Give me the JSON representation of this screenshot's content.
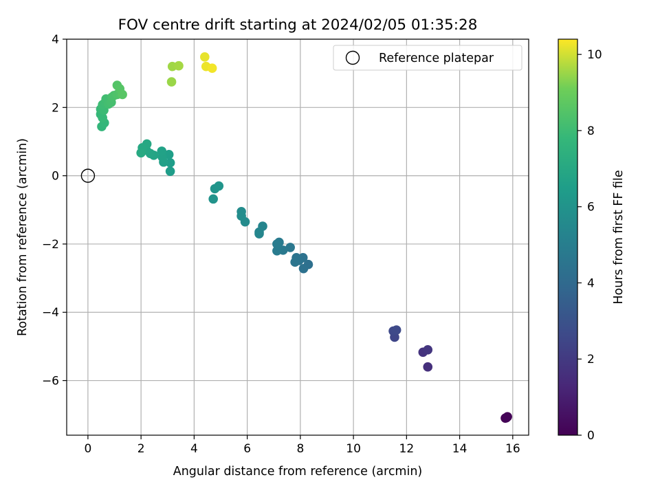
{
  "chart_data": {
    "type": "scatter",
    "title": "FOV centre drift starting at 2024/02/05 01:35:28",
    "xlabel": "Angular distance from reference (arcmin)",
    "ylabel": "Rotation from reference (arcmin)",
    "xlim": [
      -0.8,
      16.6
    ],
    "ylim": [
      -7.6,
      4.0
    ],
    "xticks": [
      0,
      2,
      4,
      6,
      8,
      10,
      12,
      14,
      16
    ],
    "yticks": [
      -6,
      -4,
      -2,
      0,
      2,
      4
    ],
    "grid": true,
    "legend": {
      "placement": "top-right",
      "entries": [
        "Reference platepar"
      ]
    },
    "reference_point": {
      "x": 0,
      "y": 0,
      "label": "Reference platepar"
    },
    "colorbar": {
      "label": "Hours from first FF file",
      "colormap": "viridis",
      "range": [
        0,
        10.4
      ],
      "ticks": [
        0,
        2,
        4,
        6,
        8,
        10
      ]
    },
    "points": [
      {
        "x": 15.72,
        "y": -7.1,
        "t": 0.0
      },
      {
        "x": 15.8,
        "y": -7.06,
        "t": 0.05
      },
      {
        "x": 15.76,
        "y": -7.09,
        "t": 0.1
      },
      {
        "x": 12.8,
        "y": -5.6,
        "t": 1.6
      },
      {
        "x": 12.62,
        "y": -5.17,
        "t": 1.75
      },
      {
        "x": 12.8,
        "y": -5.1,
        "t": 1.85
      },
      {
        "x": 11.55,
        "y": -4.73,
        "t": 2.5
      },
      {
        "x": 11.5,
        "y": -4.55,
        "t": 2.6
      },
      {
        "x": 11.62,
        "y": -4.52,
        "t": 2.65
      },
      {
        "x": 8.3,
        "y": -2.6,
        "t": 4.3
      },
      {
        "x": 8.12,
        "y": -2.72,
        "t": 4.35
      },
      {
        "x": 8.1,
        "y": -2.4,
        "t": 4.4
      },
      {
        "x": 7.95,
        "y": -2.48,
        "t": 4.45
      },
      {
        "x": 7.85,
        "y": -2.4,
        "t": 4.5
      },
      {
        "x": 7.8,
        "y": -2.53,
        "t": 4.55
      },
      {
        "x": 7.62,
        "y": -2.1,
        "t": 4.65
      },
      {
        "x": 7.35,
        "y": -2.18,
        "t": 4.75
      },
      {
        "x": 7.2,
        "y": -1.95,
        "t": 4.8
      },
      {
        "x": 7.12,
        "y": -2.2,
        "t": 4.85
      },
      {
        "x": 7.12,
        "y": -2.0,
        "t": 4.9
      },
      {
        "x": 6.45,
        "y": -1.65,
        "t": 5.3
      },
      {
        "x": 6.58,
        "y": -1.48,
        "t": 5.35
      },
      {
        "x": 6.45,
        "y": -1.7,
        "t": 5.4
      },
      {
        "x": 5.92,
        "y": -1.35,
        "t": 5.6
      },
      {
        "x": 5.78,
        "y": -1.05,
        "t": 5.65
      },
      {
        "x": 5.78,
        "y": -1.18,
        "t": 5.7
      },
      {
        "x": 4.72,
        "y": -0.68,
        "t": 6.0
      },
      {
        "x": 4.78,
        "y": -0.38,
        "t": 6.05
      },
      {
        "x": 4.93,
        "y": -0.3,
        "t": 6.1
      },
      {
        "x": 3.1,
        "y": 0.13,
        "t": 6.45
      },
      {
        "x": 3.1,
        "y": 0.38,
        "t": 6.5
      },
      {
        "x": 3.05,
        "y": 0.62,
        "t": 6.55
      },
      {
        "x": 2.85,
        "y": 0.4,
        "t": 6.6
      },
      {
        "x": 2.8,
        "y": 0.55,
        "t": 6.65
      },
      {
        "x": 2.78,
        "y": 0.72,
        "t": 6.7
      },
      {
        "x": 2.48,
        "y": 0.6,
        "t": 6.8
      },
      {
        "x": 2.35,
        "y": 0.65,
        "t": 6.85
      },
      {
        "x": 2.2,
        "y": 0.75,
        "t": 6.9
      },
      {
        "x": 2.22,
        "y": 0.93,
        "t": 6.95
      },
      {
        "x": 2.05,
        "y": 0.82,
        "t": 7.0
      },
      {
        "x": 2.0,
        "y": 0.67,
        "t": 7.05
      },
      {
        "x": 0.52,
        "y": 1.44,
        "t": 7.7
      },
      {
        "x": 0.62,
        "y": 1.55,
        "t": 7.75
      },
      {
        "x": 0.48,
        "y": 1.8,
        "t": 7.8
      },
      {
        "x": 0.55,
        "y": 1.7,
        "t": 7.85
      },
      {
        "x": 0.48,
        "y": 1.95,
        "t": 7.9
      },
      {
        "x": 0.6,
        "y": 1.92,
        "t": 7.95
      },
      {
        "x": 0.55,
        "y": 2.08,
        "t": 8.0
      },
      {
        "x": 0.65,
        "y": 2.15,
        "t": 8.05
      },
      {
        "x": 0.68,
        "y": 2.25,
        "t": 8.1
      },
      {
        "x": 0.78,
        "y": 2.1,
        "t": 8.15
      },
      {
        "x": 0.88,
        "y": 2.15,
        "t": 8.2
      },
      {
        "x": 0.9,
        "y": 2.3,
        "t": 8.25
      },
      {
        "x": 0.98,
        "y": 2.35,
        "t": 8.3
      },
      {
        "x": 1.1,
        "y": 2.38,
        "t": 8.4
      },
      {
        "x": 1.22,
        "y": 2.4,
        "t": 8.45
      },
      {
        "x": 1.1,
        "y": 2.65,
        "t": 8.5
      },
      {
        "x": 1.2,
        "y": 2.55,
        "t": 8.55
      },
      {
        "x": 1.3,
        "y": 2.38,
        "t": 8.6
      },
      {
        "x": 3.15,
        "y": 2.75,
        "t": 9.5
      },
      {
        "x": 3.18,
        "y": 3.2,
        "t": 9.55
      },
      {
        "x": 3.42,
        "y": 3.22,
        "t": 9.6
      },
      {
        "x": 4.4,
        "y": 3.48,
        "t": 10.2
      },
      {
        "x": 4.45,
        "y": 3.2,
        "t": 10.25
      },
      {
        "x": 4.68,
        "y": 3.15,
        "t": 10.3
      }
    ]
  }
}
